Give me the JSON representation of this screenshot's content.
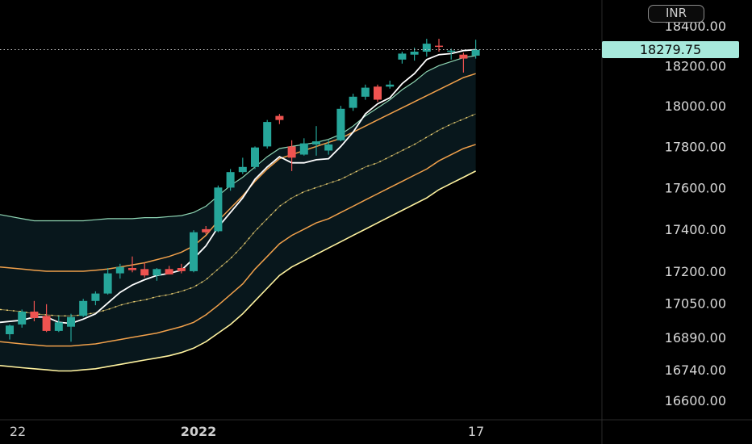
{
  "currency": "INR",
  "last_price_label": "18279.75",
  "chart_data": {
    "type": "candlestick",
    "title": "",
    "currency": "INR",
    "price_axis_labels": [
      "18400.00",
      "18200.00",
      "18000.00",
      "17800.00",
      "17600.00",
      "17400.00",
      "17200.00",
      "17050.00",
      "16890.00",
      "16740.00",
      "16600.00"
    ],
    "time_axis_labels": [
      "22",
      "2022",
      "17"
    ],
    "last_price": 18279.75,
    "scale": "log",
    "colors": {
      "up": "#26a69a",
      "down": "#ef5350",
      "last_price_line": "#d0d0d0",
      "ma_fast": "#ffffff",
      "ma_mid": "#8fd6b4",
      "band_inner": "#f0a04b",
      "band_outer": "#fff3a0",
      "center_line": "#ffe680"
    },
    "candles": [
      {
        "o": 16905,
        "h": 16950,
        "l": 16880,
        "c": 16945
      },
      {
        "o": 16950,
        "h": 17020,
        "l": 16935,
        "c": 17010
      },
      {
        "o": 17010,
        "h": 17060,
        "l": 16965,
        "c": 16980
      },
      {
        "o": 16990,
        "h": 17045,
        "l": 16915,
        "c": 16920
      },
      {
        "o": 16920,
        "h": 16990,
        "l": 16915,
        "c": 16960
      },
      {
        "o": 16940,
        "h": 17000,
        "l": 16870,
        "c": 16985
      },
      {
        "o": 16990,
        "h": 17070,
        "l": 16985,
        "c": 17060
      },
      {
        "o": 17060,
        "h": 17105,
        "l": 17040,
        "c": 17095
      },
      {
        "o": 17095,
        "h": 17215,
        "l": 17090,
        "c": 17190
      },
      {
        "o": 17190,
        "h": 17235,
        "l": 17165,
        "c": 17220
      },
      {
        "o": 17215,
        "h": 17270,
        "l": 17195,
        "c": 17205
      },
      {
        "o": 17210,
        "h": 17240,
        "l": 17170,
        "c": 17180
      },
      {
        "o": 17180,
        "h": 17215,
        "l": 17155,
        "c": 17210
      },
      {
        "o": 17210,
        "h": 17225,
        "l": 17185,
        "c": 17185
      },
      {
        "o": 17215,
        "h": 17235,
        "l": 17190,
        "c": 17200
      },
      {
        "o": 17200,
        "h": 17395,
        "l": 17195,
        "c": 17385
      },
      {
        "o": 17400,
        "h": 17415,
        "l": 17375,
        "c": 17385
      },
      {
        "o": 17390,
        "h": 17610,
        "l": 17385,
        "c": 17600
      },
      {
        "o": 17600,
        "h": 17690,
        "l": 17585,
        "c": 17675
      },
      {
        "o": 17675,
        "h": 17745,
        "l": 17665,
        "c": 17700
      },
      {
        "o": 17700,
        "h": 17800,
        "l": 17690,
        "c": 17795
      },
      {
        "o": 17800,
        "h": 17930,
        "l": 17790,
        "c": 17920
      },
      {
        "o": 17950,
        "h": 17960,
        "l": 17910,
        "c": 17930
      },
      {
        "o": 17800,
        "h": 17830,
        "l": 17680,
        "c": 17745
      },
      {
        "o": 17760,
        "h": 17840,
        "l": 17755,
        "c": 17815
      },
      {
        "o": 17810,
        "h": 17900,
        "l": 17755,
        "c": 17825
      },
      {
        "o": 17780,
        "h": 17830,
        "l": 17760,
        "c": 17810
      },
      {
        "o": 17830,
        "h": 18000,
        "l": 17825,
        "c": 17985
      },
      {
        "o": 17990,
        "h": 18060,
        "l": 17975,
        "c": 18045
      },
      {
        "o": 18045,
        "h": 18105,
        "l": 18030,
        "c": 18090
      },
      {
        "o": 18095,
        "h": 18105,
        "l": 18020,
        "c": 18030
      },
      {
        "o": 18095,
        "h": 18125,
        "l": 18085,
        "c": 18105
      },
      {
        "o": 18230,
        "h": 18270,
        "l": 18210,
        "c": 18260
      },
      {
        "o": 18255,
        "h": 18290,
        "l": 18225,
        "c": 18270
      },
      {
        "o": 18270,
        "h": 18335,
        "l": 18245,
        "c": 18310
      },
      {
        "o": 18300,
        "h": 18335,
        "l": 18270,
        "c": 18295
      },
      {
        "o": 18270,
        "h": 18285,
        "l": 18230,
        "c": 18275
      },
      {
        "o": 18255,
        "h": 18265,
        "l": 18165,
        "c": 18235
      },
      {
        "o": 18250,
        "h": 18330,
        "l": 18235,
        "c": 18279.75
      }
    ],
    "ma_fast": [
      16960,
      16970,
      16985,
      16985,
      16960,
      16955,
      16975,
      17000,
      17050,
      17100,
      17135,
      17160,
      17180,
      17190,
      17205,
      17260,
      17320,
      17410,
      17480,
      17550,
      17640,
      17700,
      17750,
      17720,
      17720,
      17735,
      17740,
      17800,
      17870,
      17960,
      18010,
      18040,
      18110,
      18160,
      18230,
      18255,
      18260,
      18275,
      18280
    ],
    "ma_mid": [
      17470,
      17450,
      17440,
      17440,
      17440,
      17440,
      17440,
      17445,
      17450,
      17450,
      17450,
      17455,
      17455,
      17460,
      17465,
      17480,
      17510,
      17560,
      17610,
      17650,
      17700,
      17750,
      17790,
      17800,
      17810,
      17820,
      17835,
      17860,
      17900,
      17950,
      17990,
      18030,
      18080,
      18120,
      18170,
      18200,
      18220,
      18240,
      18250
    ],
    "center": [
      17020,
      17010,
      17000,
      16995,
      16990,
      16990,
      16995,
      17005,
      17020,
      17040,
      17055,
      17065,
      17080,
      17090,
      17105,
      17125,
      17160,
      17210,
      17260,
      17320,
      17390,
      17450,
      17510,
      17550,
      17580,
      17600,
      17620,
      17640,
      17670,
      17700,
      17720,
      17750,
      17780,
      17810,
      17845,
      17880,
      17910,
      17935,
      17960
    ],
    "band_inner_upper": [
      17220,
      17210,
      17205,
      17200,
      17200,
      17200,
      17200,
      17205,
      17210,
      17220,
      17230,
      17240,
      17255,
      17270,
      17290,
      17320,
      17370,
      17440,
      17500,
      17560,
      17630,
      17690,
      17740,
      17760,
      17780,
      17800,
      17820,
      17840,
      17870,
      17900,
      17930,
      17960,
      17990,
      18020,
      18050,
      18080,
      18110,
      18140,
      18160
    ],
    "band_inner_lower": [
      16870,
      16860,
      16855,
      16850,
      16850,
      16850,
      16855,
      16860,
      16870,
      16880,
      16890,
      16900,
      16910,
      16925,
      16940,
      16960,
      16995,
      17040,
      17090,
      17140,
      17210,
      17270,
      17330,
      17370,
      17400,
      17430,
      17450,
      17480,
      17510,
      17540,
      17570,
      17600,
      17630,
      17660,
      17690,
      17730,
      17760,
      17790,
      17810
    ],
    "band_outer_lower": [
      16760,
      16750,
      16745,
      16740,
      16735,
      16735,
      16740,
      16745,
      16755,
      16765,
      16775,
      16785,
      16795,
      16805,
      16820,
      16840,
      16870,
      16910,
      16950,
      17000,
      17060,
      17120,
      17180,
      17220,
      17250,
      17280,
      17310,
      17340,
      17370,
      17400,
      17430,
      17460,
      17490,
      17520,
      17550,
      17590,
      17620,
      17650,
      17680
    ]
  }
}
